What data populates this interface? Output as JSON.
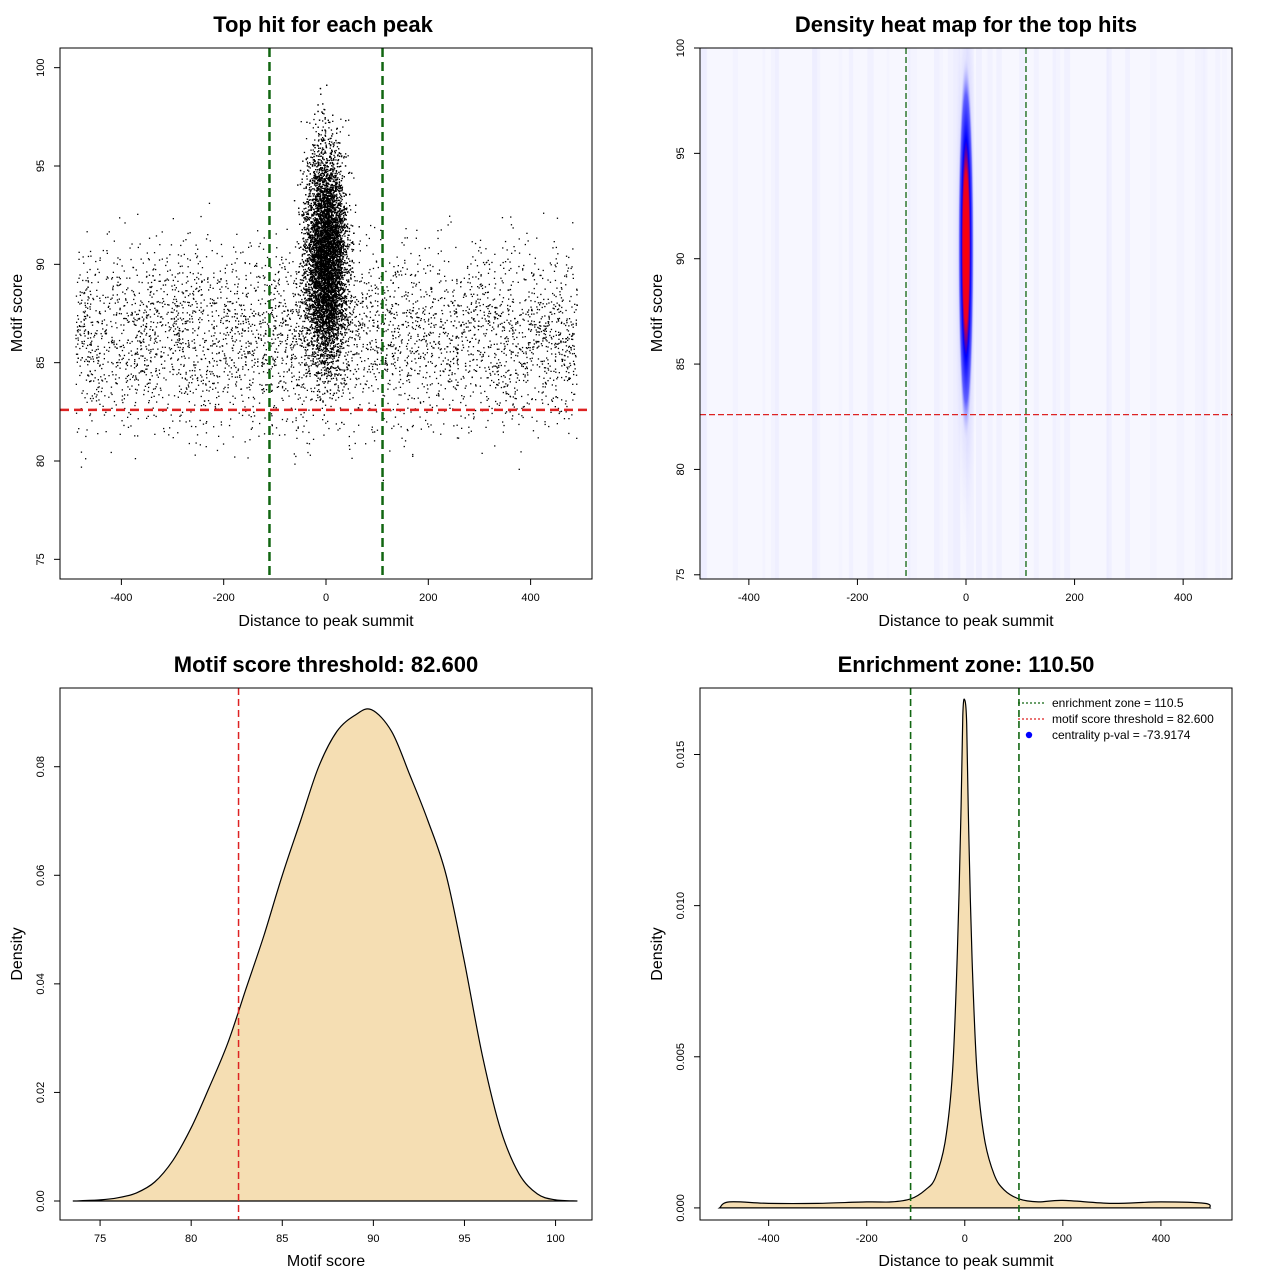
{
  "colors": {
    "threshold_line": "#dd2222",
    "zone_line": "#116611",
    "density_fill": "#f5deb3",
    "points": "#000000",
    "heat_low": "#ffffff",
    "heat_mid": "#0000ff",
    "heat_high": "#ff0000"
  },
  "chart_data": [
    {
      "id": "scatter",
      "type": "scatter",
      "title": "Top hit for each peak",
      "xlabel": "Distance to peak summit",
      "ylabel": "Motif score",
      "xlim": [
        -520,
        520
      ],
      "ylim": [
        74,
        101
      ],
      "xticks": [
        -400,
        -200,
        0,
        200,
        400
      ],
      "yticks": [
        75,
        80,
        85,
        90,
        95,
        100
      ],
      "xtick_labels": [
        "-400",
        "-200",
        "0",
        "200",
        "400"
      ],
      "ytick_labels": [
        "75",
        "80",
        "85",
        "90",
        "95",
        "100"
      ],
      "hlines": [
        82.6
      ],
      "vlines": [
        -110.5,
        110.5
      ],
      "point_groups": [
        {
          "x_center": 0,
          "x_spread": 28,
          "y_center": 90.5,
          "y_spread": 3.8,
          "count": 9000
        },
        {
          "x_range": [
            -490,
            490
          ],
          "y_center": 86.5,
          "y_spread": 3.3,
          "count": 4200
        }
      ]
    },
    {
      "id": "heatmap",
      "type": "heatmap",
      "title": "Density heat map for the top hits",
      "xlabel": "Distance to peak summit",
      "ylabel": "Motif score",
      "xlim": [
        -490,
        490
      ],
      "ylim": [
        74.8,
        100
      ],
      "xticks": [
        -400,
        -200,
        0,
        200,
        400
      ],
      "yticks": [
        75,
        80,
        85,
        90,
        95,
        100
      ],
      "xtick_labels": [
        "-400",
        "-200",
        "0",
        "200",
        "400"
      ],
      "ytick_labels": [
        "75",
        "80",
        "85",
        "90",
        "95",
        "100"
      ],
      "hlines": [
        82.6
      ],
      "vlines": [
        -110.5,
        110.5
      ],
      "density_center": {
        "x": 0,
        "y": 90.5,
        "x_sd": 9,
        "y_sd": 3.6
      }
    },
    {
      "id": "score_density",
      "type": "area",
      "title": "Motif score threshold: 82.600",
      "xlabel": "Motif score",
      "ylabel": "Density",
      "xlim": [
        72.8,
        102
      ],
      "ylim": [
        -0.0035,
        0.0945
      ],
      "xticks": [
        75,
        80,
        85,
        90,
        95,
        100
      ],
      "yticks": [
        0,
        0.02,
        0.04,
        0.06,
        0.08
      ],
      "xtick_labels": [
        "75",
        "80",
        "85",
        "90",
        "95",
        "100"
      ],
      "ytick_labels": [
        "0.00",
        "0.02",
        "0.04",
        "0.06",
        "0.08"
      ],
      "vlines": [
        82.6
      ],
      "x": [
        73.5,
        75,
        76,
        77,
        78,
        79,
        80,
        81,
        82,
        83,
        84,
        85,
        86,
        87,
        88,
        89,
        89.9,
        91,
        92,
        93,
        94,
        95,
        96,
        97,
        98,
        99,
        100,
        101.2
      ],
      "y": [
        0,
        0.0002,
        0.0006,
        0.0015,
        0.0035,
        0.0075,
        0.0135,
        0.021,
        0.029,
        0.039,
        0.049,
        0.06,
        0.07,
        0.08,
        0.0865,
        0.0895,
        0.0905,
        0.0865,
        0.0785,
        0.07,
        0.06,
        0.044,
        0.0265,
        0.013,
        0.005,
        0.0013,
        0.0002,
        0
      ]
    },
    {
      "id": "distance_density",
      "type": "area",
      "title": "Enrichment zone: 110.50",
      "xlabel": "Distance to peak summit",
      "ylabel": "Density",
      "xlim": [
        -540,
        545
      ],
      "ylim": [
        -0.0004,
        0.0172
      ],
      "xticks": [
        -400,
        -200,
        0,
        200,
        400
      ],
      "yticks": [
        0,
        0.005,
        0.01,
        0.015
      ],
      "xtick_labels": [
        "-400",
        "-200",
        "0",
        "200",
        "400"
      ],
      "ytick_labels": [
        "0.000",
        "0.005",
        "0.010",
        "0.015"
      ],
      "vlines": [
        -110.5,
        110.5
      ],
      "x": [
        -500,
        -480,
        -400,
        -300,
        -200,
        -150,
        -110,
        -80,
        -60,
        -40,
        -25,
        -15,
        -8,
        -4,
        0,
        4,
        8,
        15,
        25,
        40,
        60,
        80,
        110,
        150,
        200,
        300,
        400,
        490,
        500
      ],
      "y": [
        0,
        0.0002,
        0.00015,
        0.00015,
        0.0002,
        0.0002,
        0.0003,
        0.0006,
        0.001,
        0.0022,
        0.0045,
        0.0085,
        0.013,
        0.0163,
        0.0168,
        0.016,
        0.0125,
        0.0082,
        0.0045,
        0.0023,
        0.0011,
        0.0006,
        0.0003,
        0.0002,
        0.00025,
        0.00015,
        0.0002,
        0.00015,
        0
      ],
      "legend": {
        "position": "top-right",
        "entries": [
          {
            "label": "enrichment zone = 110.5",
            "style": "dotted-line",
            "color": "#116611"
          },
          {
            "label": "motif score threshold = 82.600",
            "style": "dotted-line",
            "color": "#dd2222"
          },
          {
            "label": "centrality p-val = -73.9174",
            "style": "point",
            "color": "#0000ff"
          }
        ]
      }
    }
  ]
}
